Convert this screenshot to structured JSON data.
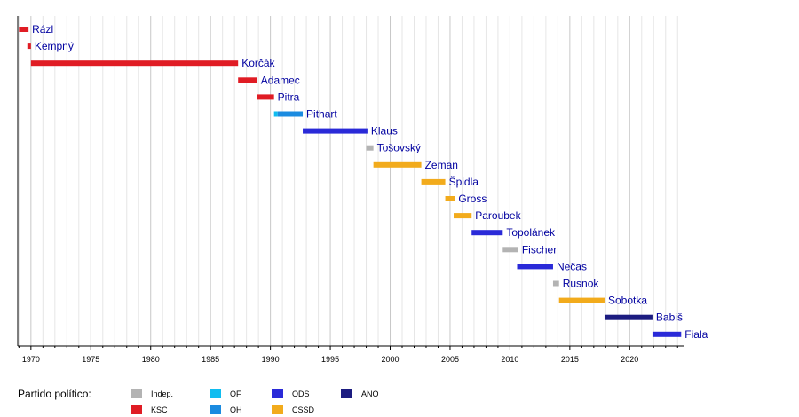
{
  "chart_data": {
    "type": "bar",
    "orientation": "horizontal-timeline",
    "title": "",
    "xlabel": "",
    "ylabel": "",
    "xlim": [
      1968.9,
      2024.5
    ],
    "x_ticks": [
      1970,
      1975,
      1980,
      1985,
      1990,
      1995,
      2000,
      2005,
      2010,
      2015,
      2020
    ],
    "minor_grid_step_years": 1,
    "grid": true,
    "legend": {
      "title": "Partido político:",
      "position": "bottom-left",
      "entries": [
        {
          "party": "Indep.",
          "color": "#b3b3b3"
        },
        {
          "party": "KSC",
          "color": "#e01c24"
        },
        {
          "party": "OF",
          "color": "#10bdf0"
        },
        {
          "party": "OH",
          "color": "#1b8be0"
        },
        {
          "party": "ODS",
          "color": "#2a2ad8"
        },
        {
          "party": "CSSD",
          "color": "#f2ab1c"
        },
        {
          "party": "ANO",
          "color": "#1c1c80"
        }
      ]
    },
    "series": [
      {
        "name": "Rázl",
        "segments": [
          {
            "start": 1969.0,
            "end": 1969.8,
            "party": "KSC"
          }
        ]
      },
      {
        "name": "Kempný",
        "segments": [
          {
            "start": 1969.7,
            "end": 1970.0,
            "party": "KSC"
          }
        ]
      },
      {
        "name": "Korčák",
        "segments": [
          {
            "start": 1970.0,
            "end": 1987.3,
            "party": "KSC"
          }
        ]
      },
      {
        "name": "Adamec",
        "segments": [
          {
            "start": 1987.3,
            "end": 1988.9,
            "party": "KSC"
          }
        ]
      },
      {
        "name": "Pitra",
        "segments": [
          {
            "start": 1988.9,
            "end": 1990.3,
            "party": "KSC"
          }
        ]
      },
      {
        "name": "Pithart",
        "segments": [
          {
            "start": 1990.3,
            "end": 1990.6,
            "party": "OF"
          },
          {
            "start": 1990.6,
            "end": 1992.7,
            "party": "OH"
          }
        ]
      },
      {
        "name": "Klaus",
        "segments": [
          {
            "start": 1992.7,
            "end": 1998.1,
            "party": "ODS"
          }
        ]
      },
      {
        "name": "Tošovský",
        "segments": [
          {
            "start": 1998.0,
            "end": 1998.6,
            "party": "Indep."
          }
        ]
      },
      {
        "name": "Zeman",
        "segments": [
          {
            "start": 1998.6,
            "end": 2002.6,
            "party": "CSSD"
          }
        ]
      },
      {
        "name": "Špidla",
        "segments": [
          {
            "start": 2002.6,
            "end": 2004.6,
            "party": "CSSD"
          }
        ]
      },
      {
        "name": "Gross",
        "segments": [
          {
            "start": 2004.6,
            "end": 2005.4,
            "party": "CSSD"
          }
        ]
      },
      {
        "name": "Paroubek",
        "segments": [
          {
            "start": 2005.3,
            "end": 2006.8,
            "party": "CSSD"
          }
        ]
      },
      {
        "name": "Topolánek",
        "segments": [
          {
            "start": 2006.8,
            "end": 2009.4,
            "party": "ODS"
          }
        ]
      },
      {
        "name": "Fischer",
        "segments": [
          {
            "start": 2009.4,
            "end": 2010.7,
            "party": "Indep."
          }
        ]
      },
      {
        "name": "Nečas",
        "segments": [
          {
            "start": 2010.6,
            "end": 2013.6,
            "party": "ODS"
          }
        ]
      },
      {
        "name": "Rusnok",
        "segments": [
          {
            "start": 2013.6,
            "end": 2014.1,
            "party": "Indep."
          }
        ]
      },
      {
        "name": "Sobotka",
        "segments": [
          {
            "start": 2014.1,
            "end": 2017.9,
            "party": "CSSD"
          }
        ]
      },
      {
        "name": "Babiš",
        "segments": [
          {
            "start": 2017.9,
            "end": 2021.9,
            "party": "ANO"
          }
        ]
      },
      {
        "name": "Fiala",
        "segments": [
          {
            "start": 2021.9,
            "end": 2024.3,
            "party": "ODS"
          }
        ]
      }
    ]
  }
}
